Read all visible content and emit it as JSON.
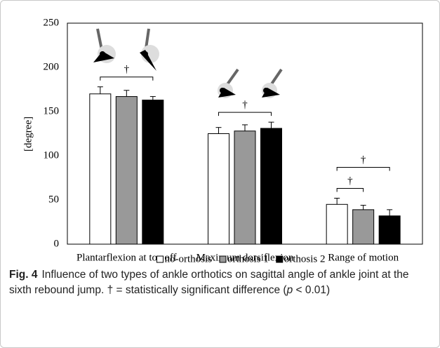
{
  "chart_data": {
    "type": "bar",
    "y_label": "[degree]",
    "categories": [
      "Plantarflexion at toe off",
      "Maximum dorsiflexion",
      "Range of motion"
    ],
    "series": [
      {
        "name": "no-orthosis",
        "color": "#ffffff",
        "values": [
          170,
          125,
          45
        ],
        "errors": [
          8,
          7,
          7
        ]
      },
      {
        "name": "orthosis 1",
        "color": "#999999",
        "values": [
          167,
          128,
          39
        ],
        "errors": [
          7,
          7,
          5
        ]
      },
      {
        "name": "orthosis 2",
        "color": "#000000",
        "values": [
          163,
          131,
          32
        ],
        "errors": [
          4,
          7,
          7
        ]
      }
    ],
    "ylim": [
      0,
      250
    ],
    "yticks": [
      0,
      50,
      100,
      150,
      200,
      250
    ],
    "grid": false,
    "legend": "bottom",
    "significance": [
      {
        "category": 0,
        "from": 0,
        "to": 2,
        "label": "†"
      },
      {
        "category": 1,
        "from": 0,
        "to": 2,
        "label": "†"
      },
      {
        "category": 2,
        "from": 0,
        "to": 1,
        "label": "†"
      },
      {
        "category": 2,
        "from": 0,
        "to": 2,
        "label": "†"
      }
    ]
  },
  "caption": {
    "label": "Fig. 4",
    "parts": [
      "Influence of two types of ankle orthotics on sagittal angle of ankle joint at the sixth rebound jump. † = statistically significant difference (",
      "p",
      " < 0.01)"
    ]
  }
}
